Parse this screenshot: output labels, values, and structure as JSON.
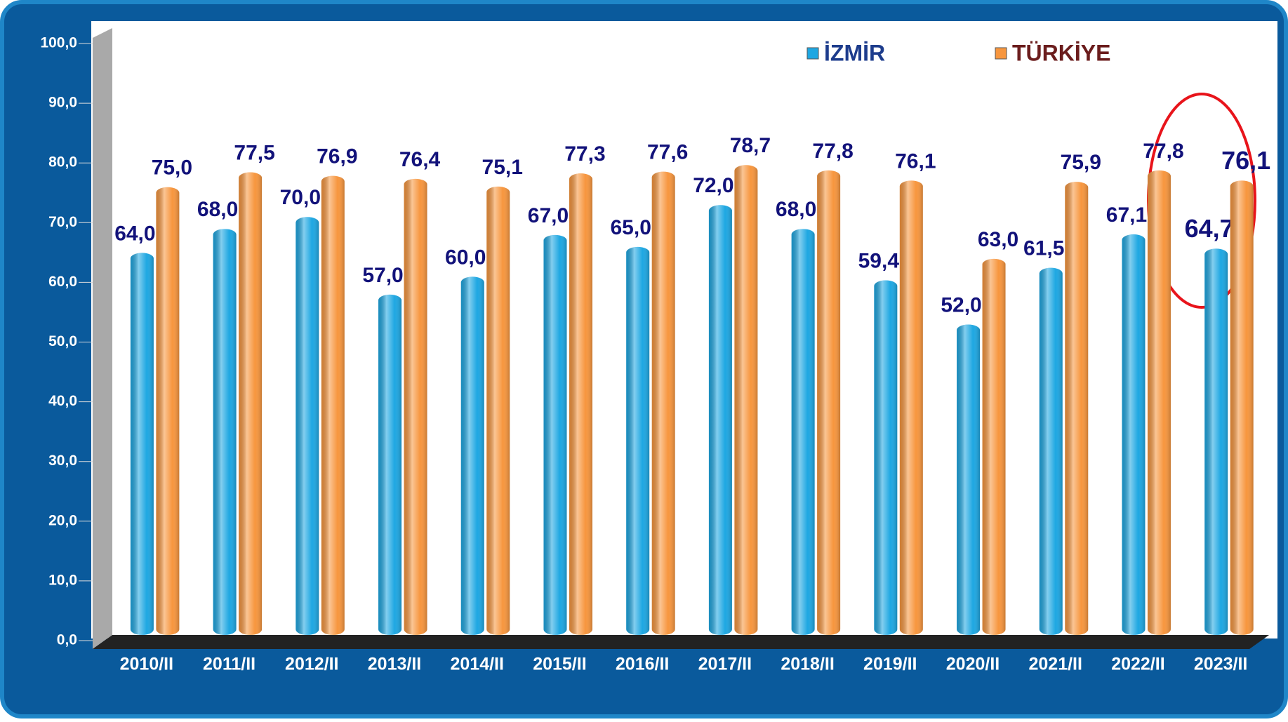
{
  "chart_data": {
    "type": "bar",
    "categories": [
      "2010/II",
      "2011/II",
      "2012/II",
      "2013/II",
      "2014/II",
      "2015/II",
      "2016/II",
      "2017/II",
      "2018/II",
      "2019/II",
      "2020/II",
      "2021/II",
      "2022/II",
      "2023/II"
    ],
    "series": [
      {
        "name": "İZMİR",
        "color": "#1ea7e2",
        "values": [
          64.0,
          68.0,
          70.0,
          57.0,
          60.0,
          67.0,
          65.0,
          72.0,
          68.0,
          59.4,
          52.0,
          61.5,
          67.1,
          64.7
        ],
        "value_labels": [
          "64,0",
          "68,0",
          "70,0",
          "57,0",
          "60,0",
          "67,0",
          "65,0",
          "72,0",
          "68,0",
          "59,4",
          "52,0",
          "61,5",
          "67,1",
          "64,7"
        ]
      },
      {
        "name": "TÜRKİYE",
        "color": "#f7963e",
        "values": [
          75.0,
          77.5,
          76.9,
          76.4,
          75.1,
          77.3,
          77.6,
          78.7,
          77.8,
          76.1,
          63.0,
          75.9,
          77.8,
          76.1
        ],
        "value_labels": [
          "75,0",
          "77,5",
          "76,9",
          "76,4",
          "75,1",
          "77,3",
          "77,6",
          "78,7",
          "77,8",
          "76,1",
          "63,0",
          "75,9",
          "77,8",
          "76,1"
        ]
      }
    ],
    "ylim": [
      0,
      100
    ],
    "yticks": [
      {
        "value": 0,
        "label": "0,0"
      },
      {
        "value": 10,
        "label": "10,0"
      },
      {
        "value": 20,
        "label": "20,0"
      },
      {
        "value": 30,
        "label": "30,0"
      },
      {
        "value": 40,
        "label": "40,0"
      },
      {
        "value": 50,
        "label": "50,0"
      },
      {
        "value": 60,
        "label": "60,0"
      },
      {
        "value": 70,
        "label": "70,0"
      },
      {
        "value": 80,
        "label": "80,0"
      },
      {
        "value": 90,
        "label": "90,0"
      },
      {
        "value": 100,
        "label": "100,0"
      }
    ],
    "legend": "top-right"
  }
}
